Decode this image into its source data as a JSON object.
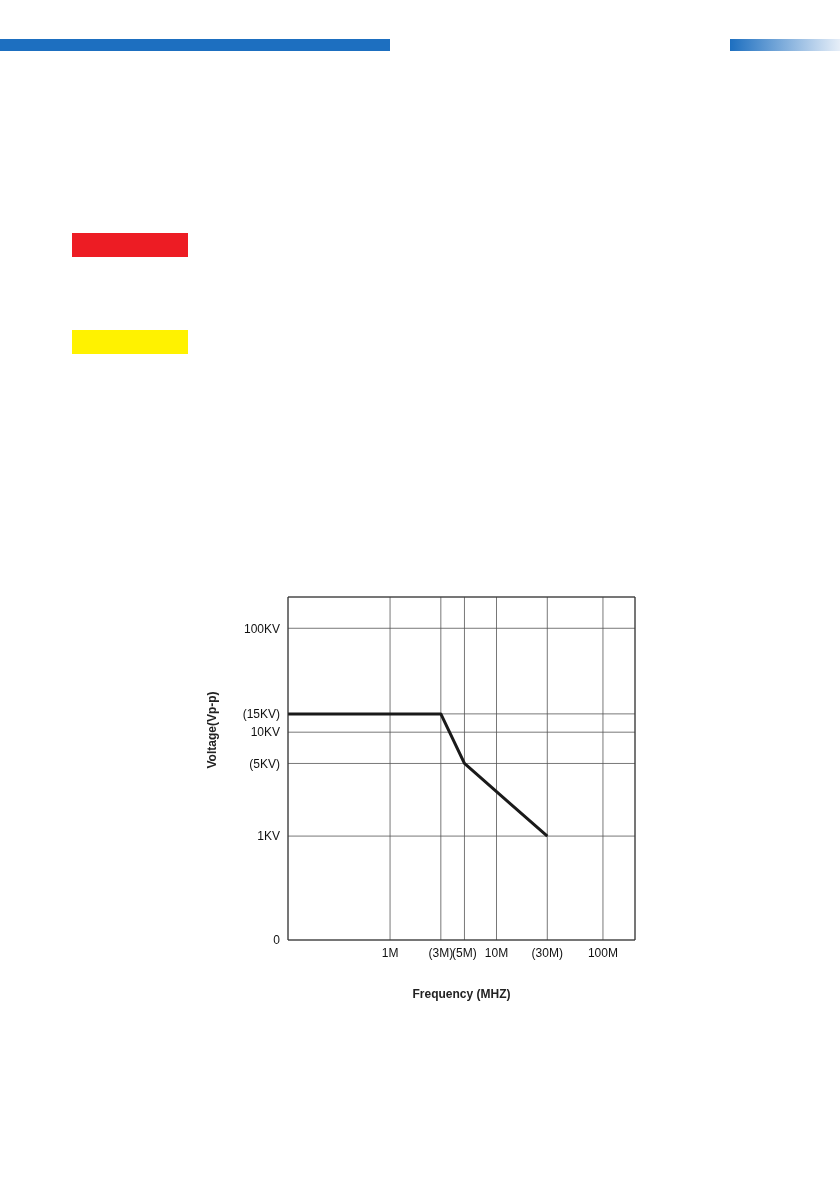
{
  "chart_data": {
    "type": "line",
    "xlabel": "Frequency (MHZ)",
    "ylabel": "Voltage(Vp-p)",
    "x": [
      0.11,
      3,
      5,
      30
    ],
    "series": [
      {
        "color": "#1a1a1a",
        "values": [
          15,
          15,
          5,
          1
        ]
      }
    ],
    "log": "xy",
    "xlim": [
      0.11,
      200
    ],
    "xticks": [
      {
        "value": 1,
        "label": "1M"
      },
      {
        "value": 3,
        "label": "(3M)"
      },
      {
        "value": 5,
        "label": "(5M)"
      },
      {
        "value": 10,
        "label": "10M"
      },
      {
        "value": 30,
        "label": "(30M)"
      },
      {
        "value": 100,
        "label": "100M"
      }
    ],
    "ylim": [
      0.1,
      200
    ],
    "yticks": [
      {
        "value": 0.1,
        "label": "0"
      },
      {
        "value": 1,
        "label": "1KV"
      },
      {
        "value": 5,
        "label": "(5KV)"
      },
      {
        "value": 10,
        "label": "10KV"
      },
      {
        "value": 15,
        "label": "(15KV)"
      },
      {
        "value": 100,
        "label": "100KV"
      }
    ],
    "grid": true
  }
}
